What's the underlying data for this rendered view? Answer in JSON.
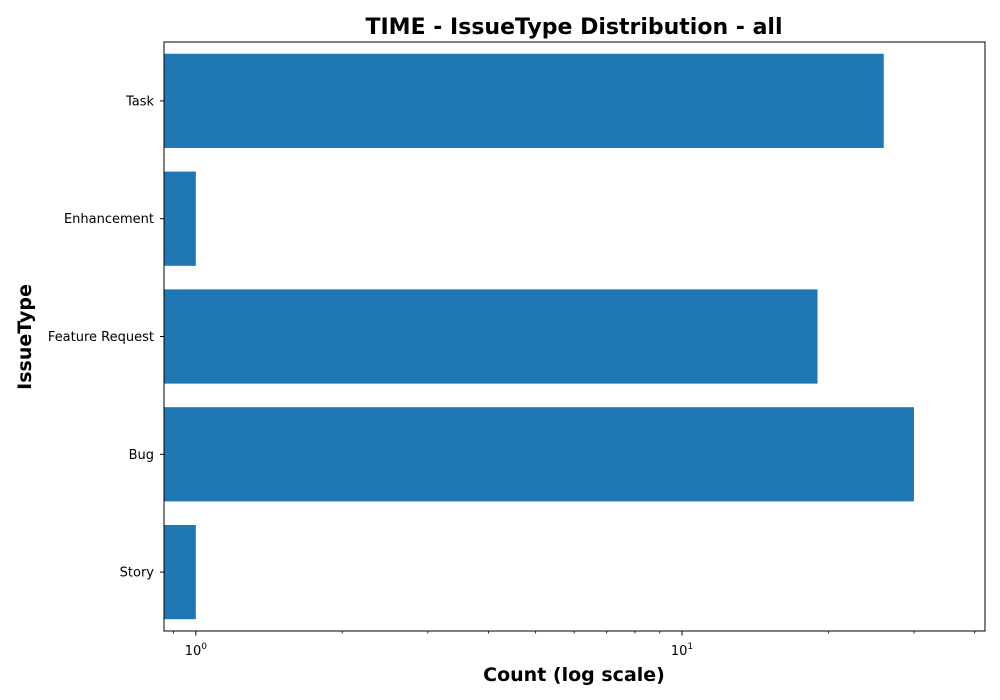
{
  "chart_data": {
    "type": "bar",
    "orientation": "horizontal",
    "title": "TIME - IssueType Distribution - all",
    "xlabel": "Count (log scale)",
    "ylabel": "IssueType",
    "x_scale": "log",
    "xlim": [
      0.86,
      42
    ],
    "categories": [
      "Task",
      "Enhancement",
      "Feature Request",
      "Bug",
      "Story"
    ],
    "values": [
      26,
      1,
      19,
      30,
      1
    ],
    "x_ticks": [
      {
        "value": 1,
        "base": "10",
        "exponent": "0"
      },
      {
        "value": 10,
        "base": "10",
        "exponent": "1"
      }
    ],
    "bar_color": "#1f77b4",
    "grid": false,
    "legend": "none"
  }
}
